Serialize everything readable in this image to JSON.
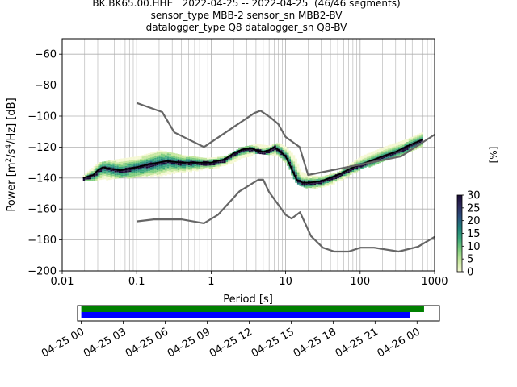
{
  "figure": {
    "title_lines": [
      "BK.BK65.00.HHE   2022-04-25 -- 2022-04-25  (46/46 segments)",
      "sensor_type MBB-2 sensor_sn MBB2-BV",
      "datalogger_type Q8 datalogger_sn Q8-BV"
    ]
  },
  "chart_data": [
    {
      "type": "heatmap",
      "title": "BK.BK65.00.HHE   2022-04-25 -- 2022-04-25  (46/46 segments)",
      "xlabel": "Period [s]",
      "ylabel": "Power [m²/s⁴/Hz] [dB]",
      "xscale": "log",
      "xlim": [
        0.01,
        1000
      ],
      "ylim": [
        -200,
        -50
      ],
      "grid": true,
      "xtick_labels": [
        "0.01",
        "0.1",
        "1",
        "10",
        "100",
        "1000"
      ],
      "xtick_values": [
        0.01,
        0.1,
        1,
        10,
        100,
        1000
      ],
      "ytick_values": [
        -200,
        -180,
        -160,
        -140,
        -120,
        -100,
        -80,
        -60
      ],
      "ytick_labels": [
        "−200",
        "−180",
        "−160",
        "−140",
        "−120",
        "−100",
        "−80",
        "−60"
      ],
      "colorbar": {
        "label": "[%]",
        "range": [
          0,
          30
        ],
        "tick_values": [
          0,
          5,
          10,
          15,
          20,
          25,
          30
        ],
        "tick_labels": [
          "0",
          "5",
          "10",
          "15",
          "20",
          "25",
          "30"
        ],
        "colors": [
          "#f5f8d2",
          "#c6e79e",
          "#7fcd7e",
          "#3aa67a",
          "#1f7f7a",
          "#2a4f7c",
          "#2d2a5c",
          "#1a0c36"
        ]
      },
      "series": [
        {
          "kind": "mean",
          "color": "#000000",
          "x": [
            0.019,
            0.022,
            0.026,
            0.03,
            0.035,
            0.045,
            0.06,
            0.1,
            0.15,
            0.25,
            0.4,
            0.7,
            1.0,
            1.5,
            2.0,
            2.5,
            3.0,
            3.5,
            4.0,
            5.0,
            6.0,
            7.0,
            8.0,
            9.0,
            10.0,
            12.0,
            14.0,
            17.0,
            20.0,
            30.0,
            50.0,
            80.0,
            120.0,
            200.0,
            300.0,
            500.0,
            700.0
          ],
          "y": [
            -140,
            -139,
            -138,
            -135,
            -133,
            -134,
            -135,
            -133,
            -131,
            -129,
            -130,
            -130,
            -130,
            -128,
            -124,
            -122,
            -121,
            -121,
            -122,
            -123,
            -122,
            -120,
            -122,
            -124,
            -126,
            -134,
            -141,
            -143,
            -143,
            -142,
            -138,
            -133,
            -130,
            -126,
            -123,
            -118,
            -115
          ]
        },
        {
          "kind": "noise-model-high",
          "color": "#666666",
          "x": [
            0.1,
            0.22,
            0.32,
            0.8,
            3.8,
            4.6,
            6.3,
            7.9,
            10.0,
            15.4,
            20.0,
            354.8,
            1000.0
          ],
          "y": [
            -91.5,
            -97.4,
            -110.5,
            -120.0,
            -98.0,
            -96.5,
            -101.0,
            -105.0,
            -113.5,
            -120.0,
            -138.0,
            -126.0,
            -112.0
          ]
        },
        {
          "kind": "noise-model-low",
          "color": "#666666",
          "x": [
            0.1,
            0.17,
            0.4,
            0.8,
            1.24,
            2.4,
            4.3,
            5.0,
            6.0,
            10.0,
            12.0,
            15.6,
            21.9,
            31.6,
            45.0,
            70.0,
            101.0,
            154.0,
            328.0,
            600.0,
            1000.0
          ],
          "y": [
            -168.0,
            -166.7,
            -166.7,
            -169.2,
            -163.7,
            -148.6,
            -141.1,
            -141.1,
            -149.0,
            -163.8,
            -166.2,
            -162.1,
            -177.5,
            -185.0,
            -187.5,
            -187.5,
            -185.0,
            -185.0,
            -187.5,
            -184.4,
            -178.0
          ]
        }
      ],
      "density_band": {
        "x": [
          0.019,
          0.03,
          0.05,
          0.1,
          0.2,
          0.4,
          0.8,
          1.5,
          2.5,
          4.0,
          6.0,
          8.0,
          10.0,
          13.0,
          16.0,
          20.0,
          30.0,
          50.0,
          100.0,
          200.0,
          400.0,
          700.0
        ],
        "upper": [
          -138,
          -130,
          -128,
          -126,
          -122,
          -125,
          -127,
          -126,
          -120,
          -118,
          -119,
          -117,
          -120,
          -126,
          -136,
          -138,
          -139,
          -136,
          -126,
          -120,
          -115,
          -110
        ],
        "lower": [
          -142,
          -141,
          -140,
          -139,
          -138,
          -136,
          -134,
          -132,
          -127,
          -124,
          -125,
          -126,
          -130,
          -142,
          -145,
          -146,
          -146,
          -142,
          -134,
          -129,
          -124,
          -119
        ]
      }
    },
    {
      "type": "bar",
      "title": "",
      "xlabel": "",
      "ylabel": "",
      "x_axis": "time",
      "xlim": [
        "2022-04-24 23:44",
        "2022-04-26 01:36"
      ],
      "xtick_labels": [
        "04-25 00",
        "04-25 03",
        "04-25 06",
        "04-25 09",
        "04-25 12",
        "04-25 15",
        "04-25 18",
        "04-25 21",
        "04-26 00"
      ],
      "series": [
        {
          "name": "",
          "color": "#008000",
          "start": "2022-04-25 00:00",
          "end": "2022-04-26 00:30"
        },
        {
          "name": "",
          "color": "#0000ff",
          "start": "2022-04-25 00:00",
          "end": "2022-04-25 23:30"
        }
      ]
    }
  ]
}
